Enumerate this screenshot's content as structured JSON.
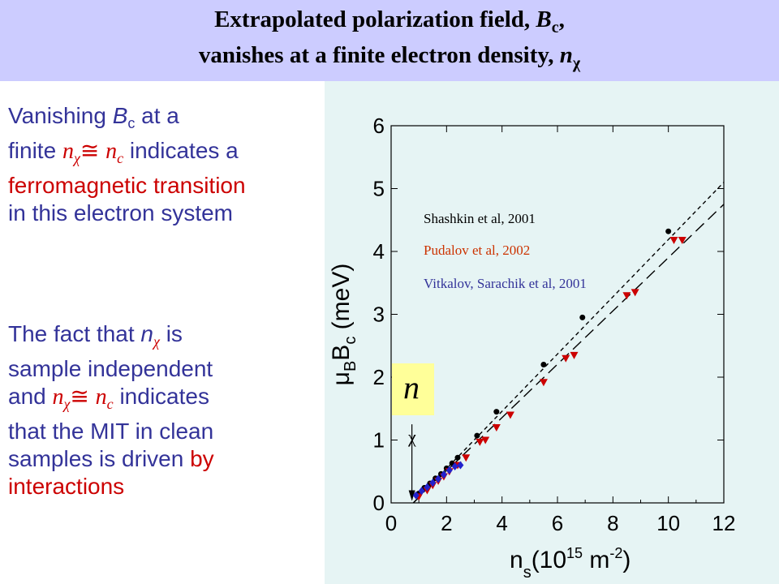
{
  "header": {
    "line1_prefix": "Extrapolated polarization field, ",
    "line1_var": "B",
    "line1_sub": "c",
    "line1_suffix": ",",
    "line2_prefix": "vanishes at a finite electron density, ",
    "line2_var": "n",
    "line2_sub": "χ"
  },
  "left": {
    "p1_l1a": "Vanishing ",
    "p1_l1b": "B",
    "p1_l1c": "c",
    "p1_l1d": " at a",
    "p1_l2a": "finite ",
    "p1_n": "n",
    "p1_chi": "χ",
    "p1_approx": "≅",
    "p1_nc": "n",
    "p1_c": "c",
    "p1_l2b": " indicates a",
    "p1_l3": "ferromagnetic transition",
    "p1_l4": "in this electron system",
    "p2_l1a": "The fact that ",
    "p2_n": "n",
    "p2_chi": "χ",
    "p2_l1b": " is",
    "p2_l2": "sample independent",
    "p2_l3a": "and ",
    "p2_l3b": " indicates",
    "p2_l4": "that the MIT in clean",
    "p2_l5a": "samples is driven ",
    "p2_l5b": "by",
    "p2_l6": "interactions"
  },
  "legend": {
    "shashkin": "Shashkin et al, 2001",
    "pudalov": "Pudalov et al, 2002",
    "vitkalov": "Vitkalov, Sarachik et al, 2001"
  },
  "annotation": {
    "n": "n",
    "chi": "χ"
  },
  "axes": {
    "ylabel": "μBBc (meV)",
    "xlabel": "ns(10¹⁵ m⁻²)"
  },
  "colors": {
    "header_bg": "#ccccff",
    "panel_bg": "#e6f4f4",
    "text_blue": "#333399",
    "text_red": "#cc0000",
    "shashkin": "#000000",
    "pudalov": "#cc0000",
    "vitkalov": "#2222cc"
  },
  "chart_data": {
    "type": "scatter",
    "xlim": [
      0,
      12
    ],
    "ylim": [
      0,
      6
    ],
    "xticks": [
      0,
      2,
      4,
      6,
      8,
      10,
      12
    ],
    "yticks": [
      0,
      1,
      2,
      3,
      4,
      5,
      6
    ],
    "series": [
      {
        "name": "Shashkin et al, 2001",
        "marker": "circle",
        "x": [
          1.0,
          1.2,
          1.4,
          1.6,
          1.8,
          2.0,
          2.2,
          2.4,
          3.1,
          3.8,
          5.5,
          6.9,
          10.0
        ],
        "y": [
          0.15,
          0.24,
          0.31,
          0.39,
          0.46,
          0.55,
          0.63,
          0.72,
          1.07,
          1.45,
          2.2,
          2.95,
          4.32
        ]
      },
      {
        "name": "Pudalov et al, 2002",
        "marker": "triangle-down",
        "x": [
          1.0,
          1.3,
          1.5,
          1.7,
          1.9,
          2.1,
          2.4,
          2.7,
          3.2,
          3.4,
          3.8,
          4.3,
          5.5,
          6.3,
          6.6,
          8.5,
          8.8,
          10.2,
          10.5
        ],
        "y": [
          0.1,
          0.2,
          0.28,
          0.35,
          0.42,
          0.5,
          0.6,
          0.72,
          0.97,
          1.0,
          1.2,
          1.4,
          1.92,
          2.3,
          2.35,
          3.3,
          3.35,
          4.18,
          4.18
        ]
      },
      {
        "name": "Vitkalov, Sarachik et al, 2001",
        "marker": "diamond",
        "x": [
          0.9,
          1.1,
          1.3,
          1.5,
          1.7,
          1.9,
          2.1,
          2.3,
          2.5
        ],
        "y": [
          0.12,
          0.19,
          0.25,
          0.32,
          0.38,
          0.45,
          0.52,
          0.58,
          0.6
        ]
      }
    ],
    "fit_lines": [
      {
        "x": [
          0.8,
          12
        ],
        "y": [
          0.0,
          5.1
        ]
      },
      {
        "x": [
          0.8,
          12
        ],
        "y": [
          0.0,
          4.75
        ]
      }
    ]
  }
}
